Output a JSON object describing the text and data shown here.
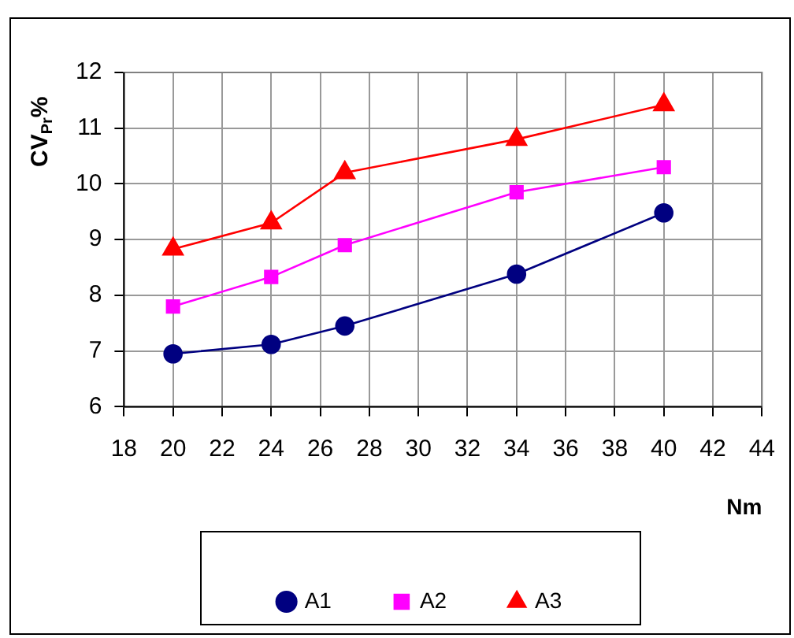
{
  "chart_data": {
    "type": "line",
    "ylabel": "CV$_{Pr}$%",
    "xlabel": "Nm",
    "x": [
      20,
      24,
      27,
      34,
      40
    ],
    "series": [
      {
        "name": "A1",
        "color": "#000080",
        "marker": "circle",
        "values": [
          6.95,
          7.12,
          7.45,
          8.38,
          9.48
        ]
      },
      {
        "name": "A2",
        "color": "#ff00ff",
        "marker": "square",
        "values": [
          7.8,
          8.33,
          8.9,
          9.85,
          10.3
        ]
      },
      {
        "name": "A3",
        "color": "#ff0000",
        "marker": "triangle",
        "values": [
          8.83,
          9.3,
          10.2,
          10.8,
          11.42
        ]
      }
    ],
    "xlim": [
      18,
      44
    ],
    "xticks": [
      18,
      20,
      22,
      24,
      26,
      28,
      30,
      32,
      34,
      36,
      38,
      40,
      42,
      44
    ],
    "ylim": [
      6,
      12
    ],
    "yticks": [
      6,
      7,
      8,
      9,
      10,
      11,
      12
    ],
    "grid": true,
    "legend": "bottom",
    "line_style": "solid"
  }
}
